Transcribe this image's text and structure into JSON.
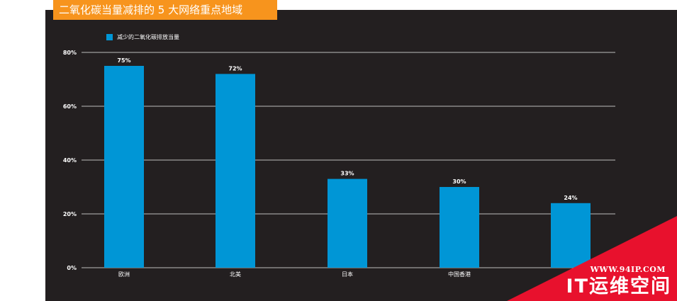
{
  "title": "二氧化碳当量减排的 5 大网络重点地域",
  "legend": {
    "label": "减少的二氧化碳排放当量"
  },
  "colors": {
    "background": "#231f20",
    "title_bg": "#f7941d",
    "bar": "#0096d6",
    "grid": "#bdbdbd",
    "watermark": "#e8112d"
  },
  "chart_data": {
    "type": "bar",
    "title": "二氧化碳当量减排的 5 大网络重点地域",
    "categories": [
      "欧洲",
      "北美",
      "日本",
      "中国香港",
      ""
    ],
    "series": [
      {
        "name": "减少的二氧化碳排放当量",
        "values": [
          75,
          72,
          33,
          30,
          24
        ]
      }
    ],
    "value_labels": [
      "75%",
      "72%",
      "33%",
      "30%",
      "24%"
    ],
    "yticks": [
      "0%",
      "20%",
      "40%",
      "60%",
      "80%"
    ],
    "ylim": [
      0,
      80
    ],
    "grid": true,
    "legend_position": "top-left"
  },
  "watermark": {
    "url": "WWW.94IP.COM",
    "name": "IT运维空间"
  }
}
